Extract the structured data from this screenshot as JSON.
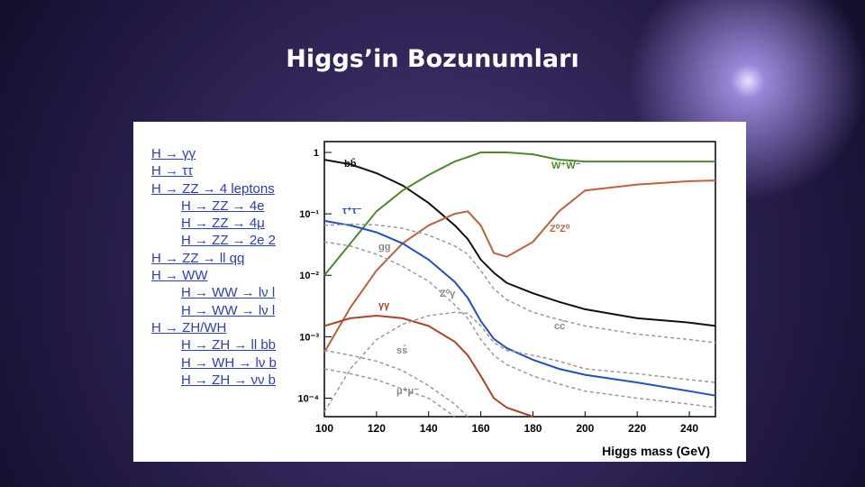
{
  "slide": {
    "title": "Higgs’in Bozunumları"
  },
  "links": [
    "H → γγ",
    "H → ττ",
    "H → ZZ → 4 leptons",
    "H → ZZ → 4e",
    "H → ZZ → 4μ",
    "H → ZZ → 2e 2",
    "H → ZZ → ll qq",
    "H → WW",
    "H → WW → lν l",
    "H → WW → lν l",
    "H → ZH/WH",
    "H → ZH → ll bb",
    "H → WH → lν b",
    "H → ZH → νν b"
  ],
  "chart_data": {
    "type": "line",
    "log_y": true,
    "xlabel": "Higgs mass  (GeV)",
    "x": [
      100,
      110,
      120,
      130,
      140,
      150,
      155,
      160,
      165,
      170,
      180,
      190,
      200,
      220,
      240,
      250
    ],
    "xlim": [
      100,
      250
    ],
    "xticks": [
      100,
      120,
      140,
      160,
      180,
      200,
      220,
      240
    ],
    "ylim": [
      5e-05,
      1.5
    ],
    "yticks": [
      1,
      {
        "value": 0.1,
        "label": "10⁻¹"
      },
      {
        "value": 0.01,
        "label": "10⁻²"
      },
      {
        "value": 0.001,
        "label": "10⁻³"
      },
      {
        "value": 0.0001,
        "label": "10⁻⁴"
      }
    ],
    "series": [
      {
        "name": "bb̄",
        "color": "#111111",
        "dashed": false,
        "values": [
          0.76,
          0.64,
          0.46,
          0.29,
          0.15,
          0.065,
          0.039,
          0.018,
          0.011,
          0.0075,
          0.0051,
          0.0037,
          0.0028,
          0.002,
          0.0017,
          0.0015
        ]
      },
      {
        "name": "W⁺W⁻",
        "color": "#4a8a2a",
        "dashed": false,
        "values": [
          0.01,
          0.033,
          0.11,
          0.24,
          0.43,
          0.71,
          0.84,
          1.0,
          1.0,
          1.0,
          0.93,
          0.76,
          0.71,
          0.71,
          0.71,
          0.71
        ]
      },
      {
        "name": "Z⁰Z⁰",
        "color": "#c0603a",
        "dashed": false,
        "values": [
          0.00056,
          0.003,
          0.012,
          0.033,
          0.065,
          0.1,
          0.11,
          0.065,
          0.023,
          0.02,
          0.035,
          0.11,
          0.24,
          0.3,
          0.34,
          0.35
        ]
      },
      {
        "name": "τ⁺τ⁻",
        "color": "#2050c0",
        "dashed": false,
        "values": [
          0.077,
          0.065,
          0.05,
          0.033,
          0.018,
          0.0078,
          0.0043,
          0.0018,
          0.00092,
          0.00065,
          0.00042,
          0.0003,
          0.00024,
          0.00018,
          0.00013,
          0.00011
        ]
      },
      {
        "name": "γγ",
        "color": "#b04028",
        "dashed": false,
        "values": [
          0.0015,
          0.002,
          0.0022,
          0.002,
          0.0015,
          0.00083,
          0.0005,
          0.00023,
          0.0001,
          7e-05,
          5e-05,
          null,
          null,
          null,
          null,
          null
        ]
      },
      {
        "name": "gg",
        "color": "#999999",
        "dashed": true,
        "values": [
          0.065,
          0.068,
          0.066,
          0.058,
          0.045,
          0.03,
          0.022,
          0.012,
          0.006,
          0.004,
          0.0025,
          0.0019,
          0.0015,
          0.0011,
          0.0009,
          0.0008
        ]
      },
      {
        "name": "Z⁰γ",
        "color": "#999999",
        "dashed": true,
        "values": [
          6e-05,
          0.0003,
          0.0009,
          0.0016,
          0.0022,
          0.0025,
          0.0024,
          0.0015,
          0.0008,
          0.0006,
          0.0005,
          0.0004,
          0.0003,
          0.00025,
          0.0002,
          0.00018
        ]
      },
      {
        "name": "cc̄",
        "color": "#999999",
        "dashed": true,
        "values": [
          0.035,
          0.03,
          0.022,
          0.014,
          0.008,
          0.0033,
          0.002,
          0.0009,
          0.0005,
          0.00035,
          0.00023,
          0.00017,
          0.00013,
          0.0001,
          8e-05,
          7e-05
        ]
      },
      {
        "name": "ss̄",
        "color": "#999999",
        "dashed": true,
        "values": [
          0.0006,
          0.0005,
          0.0004,
          0.00028,
          0.00016,
          8e-05,
          5e-05,
          null,
          null,
          null,
          null,
          null,
          null,
          null,
          null,
          null
        ]
      },
      {
        "name": "μ⁺μ⁻",
        "color": "#999999",
        "dashed": true,
        "values": [
          0.0003,
          0.00025,
          0.0002,
          0.00014,
          0.0001,
          5e-05,
          null,
          null,
          null,
          null,
          null,
          null,
          null,
          null,
          null,
          null
        ]
      }
    ]
  }
}
